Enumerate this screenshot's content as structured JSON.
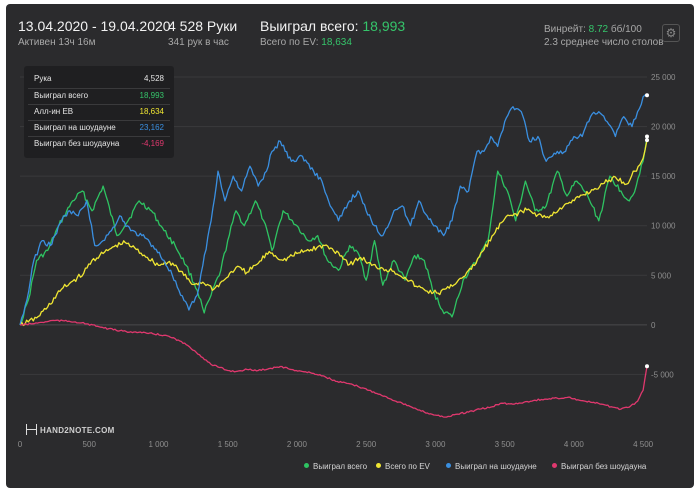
{
  "header": {
    "date_range": "13.04.2020 - 19.04.2020",
    "active": "Активен 13ч 16м",
    "hands": "4 528 Руки",
    "hands_per_hour": "341 рук в час",
    "won_total_label": "Выиграл всего:",
    "won_total_value": "18,993",
    "ev_total_label": "Всего по EV:",
    "ev_total_value": "18,634",
    "winrate_label": "Винрейт:",
    "winrate_value": "8.72",
    "winrate_suffix": "бб/100",
    "avg_tables": "2.3 среднее число столов",
    "gear_icon": "gear-icon"
  },
  "tooltip": {
    "rows": [
      {
        "label": "Рука",
        "value": "4,528",
        "color": "#e6e6e6"
      },
      {
        "label": "Выиграл всего",
        "value": "18,993",
        "color": "#35c46a"
      },
      {
        "label": "Алл-ин EB",
        "value": "18,634",
        "color": "#f0e632"
      },
      {
        "label": "Выиграл на шоудауне",
        "value": "23,162",
        "color": "#3a8fe0"
      },
      {
        "label": "Выиграл без шоудауна",
        "value": "-4,169",
        "color": "#e0386e"
      }
    ]
  },
  "logo": {
    "text": "HAND2NOTE.COM"
  },
  "chart_data": {
    "type": "line",
    "xlim": [
      0,
      4528
    ],
    "ylim": [
      -10000,
      25000
    ],
    "x_ticks": [
      "0",
      "500",
      "1 000",
      "1 500",
      "2 000",
      "2 500",
      "3 000",
      "3 500",
      "4 000",
      "4 500"
    ],
    "x_tick_values": [
      0,
      500,
      1000,
      1500,
      2000,
      2500,
      3000,
      3500,
      4000,
      4500
    ],
    "y_ticks": [
      "-5 000",
      "0",
      "5 000",
      "10 000",
      "15 000",
      "20 000",
      "25 000"
    ],
    "y_tick_values": [
      -5000,
      0,
      5000,
      10000,
      15000,
      20000,
      25000
    ],
    "grid": true,
    "legend_position": "bottom-right",
    "series": [
      {
        "name": "Выиграл всего",
        "color": "#2ec462",
        "x": [
          0,
          60,
          120,
          200,
          280,
          380,
          450,
          520,
          600,
          700,
          780,
          860,
          950,
          1040,
          1120,
          1200,
          1280,
          1330,
          1380,
          1450,
          1500,
          1560,
          1620,
          1700,
          1760,
          1820,
          1900,
          2000,
          2080,
          2150,
          2220,
          2300,
          2380,
          2450,
          2500,
          2560,
          2620,
          2700,
          2780,
          2850,
          2920,
          2980,
          3050,
          3120,
          3200,
          3300,
          3380,
          3450,
          3520,
          3580,
          3650,
          3720,
          3800,
          3880,
          3950,
          4020,
          4100,
          4180,
          4260,
          4340,
          4400,
          4450,
          4500,
          4528
        ],
        "y": [
          0,
          2500,
          6500,
          7500,
          10000,
          12500,
          13500,
          11500,
          14000,
          9000,
          10500,
          12500,
          11500,
          9500,
          8000,
          6000,
          3500,
          1200,
          3000,
          5500,
          8500,
          11500,
          10000,
          12500,
          10500,
          7500,
          11500,
          10000,
          8500,
          9000,
          6500,
          5500,
          8000,
          7000,
          4500,
          8500,
          4000,
          6500,
          4500,
          7000,
          6500,
          3500,
          1500,
          800,
          4500,
          6500,
          8500,
          15500,
          13500,
          10500,
          14500,
          11500,
          12000,
          15500,
          13000,
          14500,
          13000,
          10500,
          15000,
          13500,
          12500,
          14000,
          16500,
          18993
        ]
      },
      {
        "name": "Всего по EV",
        "color": "#f0e632",
        "x": [
          0,
          60,
          120,
          200,
          300,
          380,
          460,
          520,
          600,
          680,
          760,
          840,
          920,
          1000,
          1080,
          1160,
          1240,
          1320,
          1400,
          1480,
          1560,
          1640,
          1720,
          1800,
          1900,
          2000,
          2100,
          2200,
          2300,
          2380,
          2460,
          2540,
          2620,
          2700,
          2780,
          2860,
          2940,
          3020,
          3100,
          3180,
          3260,
          3340,
          3420,
          3500,
          3580,
          3660,
          3740,
          3820,
          3900,
          3980,
          4060,
          4140,
          4220,
          4300,
          4380,
          4440,
          4500,
          4528
        ],
        "y": [
          0,
          300,
          700,
          1800,
          3600,
          4400,
          5200,
          6500,
          7200,
          7900,
          8300,
          7600,
          6800,
          6000,
          6400,
          5400,
          4100,
          4300,
          3600,
          4600,
          5800,
          5300,
          6200,
          7400,
          6500,
          7200,
          7600,
          8000,
          7300,
          6100,
          6800,
          6000,
          5700,
          5400,
          4800,
          3900,
          3400,
          3200,
          3700,
          4700,
          5600,
          7400,
          9100,
          10700,
          11200,
          11600,
          11100,
          10800,
          11800,
          12300,
          13100,
          13600,
          14300,
          14900,
          14200,
          15500,
          16800,
          18634
        ]
      },
      {
        "name": "Выиграл на шоудауне",
        "color": "#3a8fe0",
        "x": [
          0,
          50,
          100,
          160,
          220,
          300,
          360,
          420,
          480,
          540,
          600,
          660,
          720,
          800,
          880,
          960,
          1040,
          1100,
          1160,
          1220,
          1280,
          1320,
          1380,
          1430,
          1480,
          1540,
          1600,
          1660,
          1720,
          1780,
          1820,
          1880,
          1960,
          2040,
          2120,
          2180,
          2240,
          2300,
          2380,
          2440,
          2500,
          2560,
          2620,
          2700,
          2760,
          2820,
          2880,
          2940,
          3000,
          3060,
          3120,
          3180,
          3240,
          3300,
          3350,
          3400,
          3450,
          3500,
          3560,
          3620,
          3680,
          3740,
          3800,
          3880,
          3940,
          4000,
          4060,
          4120,
          4180,
          4240,
          4300,
          4360,
          4420,
          4460,
          4500,
          4528
        ],
        "y": [
          0,
          2500,
          6500,
          8500,
          8000,
          10500,
          11500,
          11000,
          12500,
          8000,
          8500,
          9500,
          11000,
          9500,
          9000,
          8000,
          6500,
          5000,
          3000,
          1500,
          3000,
          6000,
          10500,
          15500,
          12500,
          15000,
          13500,
          16000,
          14000,
          15500,
          17500,
          18500,
          16500,
          17000,
          15500,
          14500,
          12000,
          10500,
          12500,
          13500,
          11500,
          10000,
          9000,
          11500,
          12000,
          10000,
          12500,
          11000,
          10000,
          9000,
          10500,
          14000,
          13500,
          17500,
          17500,
          19000,
          18000,
          20500,
          22000,
          21500,
          18500,
          19000,
          16500,
          17500,
          17500,
          19000,
          19000,
          21000,
          21500,
          20500,
          19000,
          21000,
          20000,
          21500,
          23000,
          23162
        ]
      },
      {
        "name": "Выиграл без шоудауна",
        "color": "#e0386e",
        "x": [
          0,
          80,
          160,
          240,
          320,
          400,
          480,
          560,
          640,
          720,
          800,
          880,
          960,
          1040,
          1120,
          1200,
          1260,
          1320,
          1380,
          1440,
          1500,
          1560,
          1640,
          1720,
          1800,
          1880,
          1960,
          2040,
          2120,
          2200,
          2280,
          2360,
          2440,
          2520,
          2600,
          2680,
          2760,
          2840,
          2920,
          3000,
          3080,
          3160,
          3240,
          3320,
          3400,
          3480,
          3560,
          3640,
          3720,
          3800,
          3880,
          3960,
          4040,
          4120,
          4200,
          4280,
          4340,
          4400,
          4460,
          4500,
          4528
        ],
        "y": [
          0,
          100,
          250,
          450,
          400,
          300,
          100,
          -150,
          -400,
          -600,
          -700,
          -800,
          -900,
          -1050,
          -1400,
          -2000,
          -2600,
          -3300,
          -4000,
          -4300,
          -4600,
          -4700,
          -4500,
          -4600,
          -4400,
          -4200,
          -4500,
          -4700,
          -4900,
          -5200,
          -5700,
          -5900,
          -6200,
          -6600,
          -7000,
          -7500,
          -7900,
          -8400,
          -8800,
          -9100,
          -9300,
          -9000,
          -8800,
          -8500,
          -8300,
          -7900,
          -8000,
          -7800,
          -7600,
          -7500,
          -7400,
          -7300,
          -7600,
          -7800,
          -8000,
          -8300,
          -8500,
          -8300,
          -7700,
          -6600,
          -4169
        ]
      }
    ]
  }
}
